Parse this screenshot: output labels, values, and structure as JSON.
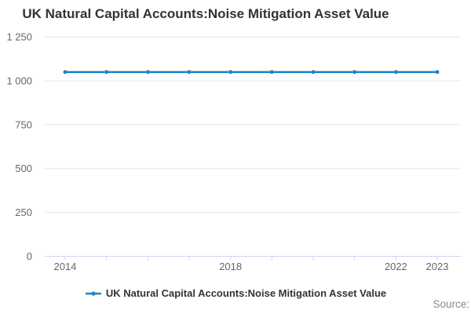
{
  "title": "UK Natural Capital Accounts:Noise Mitigation Asset Value",
  "legend": {
    "label": "UK Natural Capital Accounts:Noise Mitigation Asset Value"
  },
  "source_label": "Source:",
  "colors": {
    "accent": "#1e83c5",
    "grid": "#e6e6e6",
    "axis_line": "#ccd6eb",
    "tick_text": "#666666",
    "title_text": "#333333",
    "source_text": "#8a8a8a"
  },
  "chart_data": {
    "type": "line",
    "title": "UK Natural Capital Accounts:Noise Mitigation Asset Value",
    "xlabel": "",
    "ylabel": "",
    "x": [
      2014,
      2015,
      2016,
      2017,
      2018,
      2019,
      2020,
      2021,
      2022,
      2023
    ],
    "series": [
      {
        "name": "UK Natural Capital Accounts:Noise Mitigation Asset Value",
        "values": [
          1050,
          1050,
          1050,
          1050,
          1050,
          1050,
          1050,
          1050,
          1050,
          1050
        ]
      }
    ],
    "ylim": [
      0,
      1250
    ],
    "yticks": [
      0,
      250,
      500,
      750,
      1000,
      1250
    ],
    "xtick_labels": [
      2014,
      2018,
      2022,
      2023
    ],
    "grid": true,
    "legend_position": "bottom",
    "marker": "circle"
  }
}
